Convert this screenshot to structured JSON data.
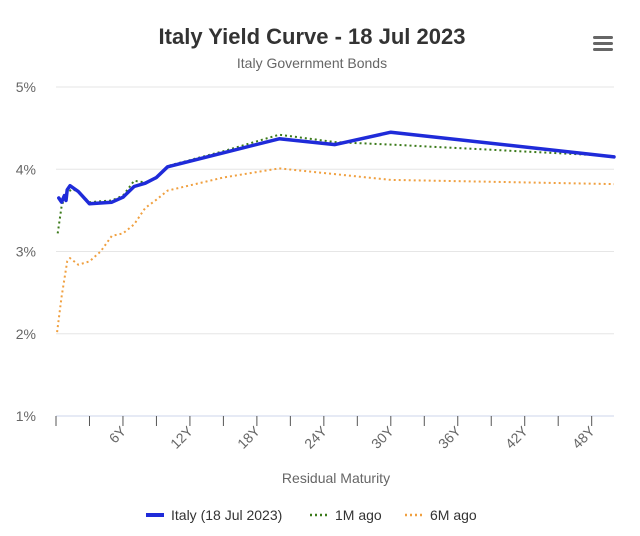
{
  "chart_data": {
    "type": "line",
    "title": "Italy Yield Curve - 18 Jul 2023",
    "subtitle": "Italy Government Bonds",
    "xlabel": "Residual Maturity",
    "ylabel": "",
    "xlim": [
      0,
      50
    ],
    "ylim": [
      1,
      5
    ],
    "x_ticks": [
      6,
      12,
      18,
      24,
      30,
      36,
      42,
      48
    ],
    "x_tick_labels": [
      "6Y",
      "12Y",
      "18Y",
      "24Y",
      "30Y",
      "36Y",
      "42Y",
      "48Y"
    ],
    "y_ticks": [
      1,
      2,
      3,
      4,
      5
    ],
    "y_tick_labels": [
      "1%",
      "2%",
      "3%",
      "4%",
      "5%"
    ],
    "grid": "horizontal",
    "legend_position": "bottom",
    "series": [
      {
        "name": "Italy (18 Jul 2023)",
        "color": "#1f2bd9",
        "dash": "solid",
        "points": [
          [
            0.25,
            3.65
          ],
          [
            0.5,
            3.6
          ],
          [
            0.75,
            3.68
          ],
          [
            0.9,
            3.62
          ],
          [
            1,
            3.75
          ],
          [
            1.25,
            3.8
          ],
          [
            2,
            3.73
          ],
          [
            3,
            3.58
          ],
          [
            4,
            3.59
          ],
          [
            5,
            3.6
          ],
          [
            6,
            3.66
          ],
          [
            7,
            3.79
          ],
          [
            8,
            3.83
          ],
          [
            9,
            3.9
          ],
          [
            10,
            4.03
          ],
          [
            15,
            4.2
          ],
          [
            20,
            4.37
          ],
          [
            25,
            4.3
          ],
          [
            30,
            4.45
          ],
          [
            50,
            4.15
          ]
        ]
      },
      {
        "name": "1M ago",
        "color": "#3b7a1a",
        "dash": "dotted",
        "points": [
          [
            0.15,
            3.22
          ],
          [
            0.5,
            3.55
          ],
          [
            0.75,
            3.65
          ],
          [
            1,
            3.72
          ],
          [
            1.5,
            3.76
          ],
          [
            2,
            3.72
          ],
          [
            3,
            3.6
          ],
          [
            4,
            3.61
          ],
          [
            5,
            3.62
          ],
          [
            6,
            3.68
          ],
          [
            7,
            3.86
          ],
          [
            8,
            3.84
          ],
          [
            9,
            3.89
          ],
          [
            10,
            4.04
          ],
          [
            15,
            4.22
          ],
          [
            20,
            4.42
          ],
          [
            25,
            4.33
          ],
          [
            30,
            4.3
          ],
          [
            50,
            4.16
          ]
        ]
      },
      {
        "name": "6M ago",
        "color": "#f0a040",
        "dash": "dotted",
        "points": [
          [
            0.1,
            2.02
          ],
          [
            0.5,
            2.45
          ],
          [
            1,
            2.88
          ],
          [
            1.25,
            2.92
          ],
          [
            2,
            2.84
          ],
          [
            3,
            2.88
          ],
          [
            4,
            3.0
          ],
          [
            5,
            3.19
          ],
          [
            6,
            3.22
          ],
          [
            7,
            3.33
          ],
          [
            8,
            3.53
          ],
          [
            9,
            3.63
          ],
          [
            10,
            3.74
          ],
          [
            15,
            3.9
          ],
          [
            20,
            4.01
          ],
          [
            30,
            3.87
          ],
          [
            50,
            3.82
          ]
        ]
      }
    ]
  }
}
